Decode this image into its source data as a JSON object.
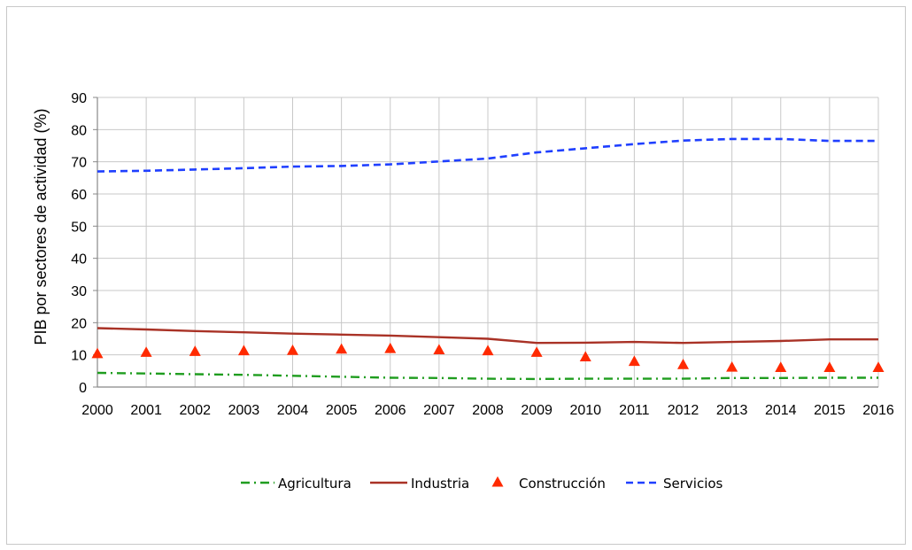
{
  "chart_data": {
    "type": "line",
    "title": "",
    "xlabel": "",
    "ylabel": "PIB por sectores de actividad  (%)",
    "ylim": [
      0,
      90
    ],
    "yticks": [
      0,
      10,
      20,
      30,
      40,
      50,
      60,
      70,
      80,
      90
    ],
    "grid": true,
    "legend_position": "bottom",
    "categories": [
      "2000",
      "2001",
      "2002",
      "2003",
      "2004",
      "2005",
      "2006",
      "2007",
      "2008",
      "2009",
      "2010",
      "2011",
      "2012",
      "2013",
      "2014",
      "2015",
      "2016"
    ],
    "series": [
      {
        "name": "Agricultura",
        "style": "dash-dot",
        "color": "#1f9d1f",
        "values": [
          4.4,
          4.2,
          4.0,
          3.8,
          3.5,
          3.2,
          2.9,
          2.8,
          2.6,
          2.5,
          2.6,
          2.6,
          2.6,
          2.8,
          2.8,
          2.9,
          2.9
        ]
      },
      {
        "name": "Industria",
        "style": "solid",
        "color": "#a93226",
        "values": [
          18.3,
          17.9,
          17.4,
          17.0,
          16.6,
          16.3,
          16.0,
          15.5,
          15.0,
          13.7,
          13.8,
          14.0,
          13.7,
          14.0,
          14.3,
          14.8,
          14.8
        ]
      },
      {
        "name": "Construcción",
        "style": "triangle-markers",
        "color": "#ff2a00",
        "values": [
          10.2,
          10.6,
          10.9,
          11.1,
          11.2,
          11.6,
          11.8,
          11.4,
          11.1,
          10.6,
          9.2,
          7.8,
          6.8,
          6.0,
          5.9,
          5.9,
          5.9
        ]
      },
      {
        "name": "Servicios",
        "style": "dashed",
        "color": "#1f3fff",
        "values": [
          67.0,
          67.2,
          67.6,
          68.0,
          68.5,
          68.7,
          69.2,
          70.1,
          71.0,
          72.9,
          74.2,
          75.5,
          76.6,
          77.1,
          77.1,
          76.5,
          76.5
        ]
      }
    ]
  }
}
